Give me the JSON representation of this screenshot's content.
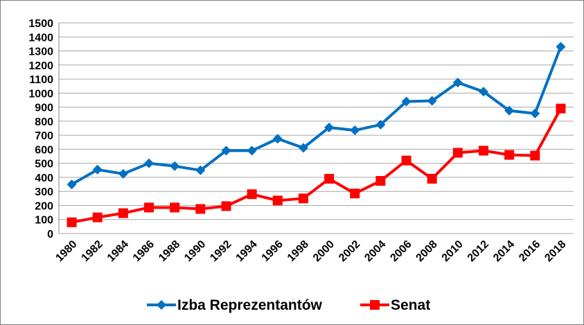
{
  "chart_data": {
    "type": "line",
    "categories": [
      "1980",
      "1982",
      "1984",
      "1986",
      "1988",
      "1990",
      "1992",
      "1994",
      "1996",
      "1998",
      "2000",
      "2002",
      "2004",
      "2006",
      "2008",
      "2010",
      "2012",
      "2014",
      "2016",
      "2018"
    ],
    "series": [
      {
        "name": "Izba Reprezentantów",
        "color": "#0070c0",
        "marker": "diamond",
        "values": [
          350,
          455,
          425,
          500,
          480,
          450,
          590,
          590,
          675,
          610,
          755,
          735,
          775,
          940,
          945,
          1075,
          1010,
          875,
          855,
          1330
        ]
      },
      {
        "name": "Senat",
        "color": "#ff0000",
        "marker": "square",
        "values": [
          80,
          115,
          145,
          185,
          185,
          175,
          195,
          280,
          235,
          250,
          390,
          285,
          375,
          520,
          390,
          575,
          590,
          560,
          555,
          890
        ]
      }
    ],
    "ylim": [
      0,
      1500
    ],
    "yticks": [
      0,
      100,
      200,
      300,
      400,
      500,
      600,
      700,
      800,
      900,
      1000,
      1100,
      1200,
      1300,
      1400,
      1500
    ],
    "grid": true,
    "legend": "bottom"
  }
}
